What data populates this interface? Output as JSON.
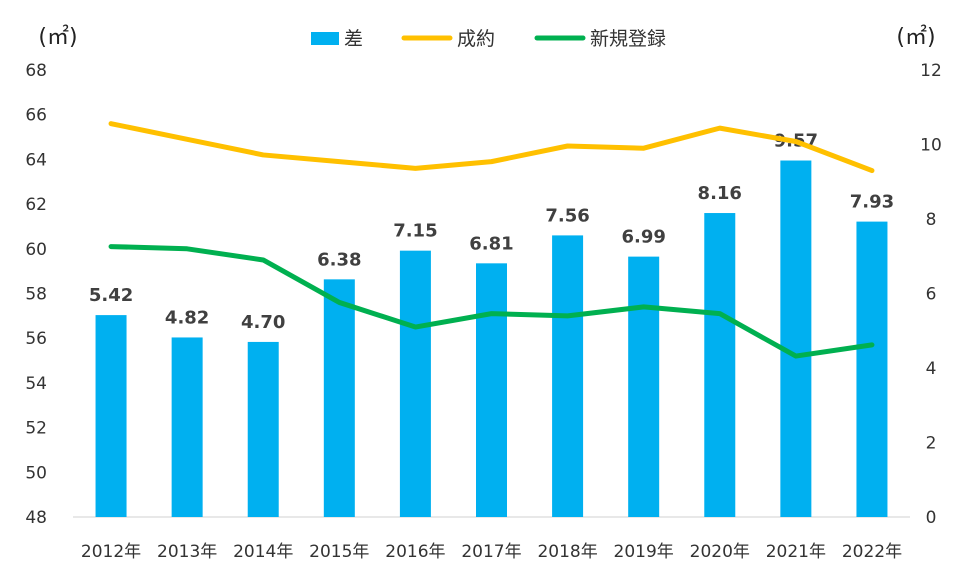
{
  "chart_data": {
    "type": "bar+line",
    "categories": [
      "2012年",
      "2013年",
      "2014年",
      "2015年",
      "2016年",
      "2017年",
      "2018年",
      "2019年",
      "2020年",
      "2021年",
      "2022年"
    ],
    "left_axis": {
      "unit": "(㎡)",
      "range": [
        48,
        68
      ],
      "ticks": [
        48,
        50,
        52,
        54,
        56,
        58,
        60,
        62,
        64,
        66,
        68
      ]
    },
    "right_axis": {
      "unit": "(㎡)",
      "range": [
        0,
        12
      ],
      "ticks": [
        0,
        2,
        4,
        6,
        8,
        10,
        12
      ]
    },
    "series": [
      {
        "name": "差",
        "kind": "bar",
        "axis": "right",
        "color": "#00B0F0",
        "values": [
          5.42,
          4.82,
          4.7,
          6.38,
          7.15,
          6.81,
          7.56,
          6.99,
          8.16,
          9.57,
          7.93
        ],
        "labels": [
          "5.42",
          "4.82",
          "4.70",
          "6.38",
          "7.15",
          "6.81",
          "7.56",
          "6.99",
          "8.16",
          "9.57",
          "7.93"
        ]
      },
      {
        "name": "成約",
        "kind": "line",
        "axis": "left",
        "color": "#FFC000",
        "values": [
          65.6,
          64.9,
          64.2,
          63.9,
          63.6,
          63.9,
          64.6,
          64.5,
          65.4,
          64.8,
          63.5
        ]
      },
      {
        "name": "新規登録",
        "kind": "line",
        "axis": "left",
        "color": "#00B050",
        "values": [
          60.1,
          60.0,
          59.5,
          57.6,
          56.5,
          57.1,
          57.0,
          57.4,
          57.1,
          55.2,
          55.7
        ]
      }
    ],
    "legend_position": "top-center"
  }
}
